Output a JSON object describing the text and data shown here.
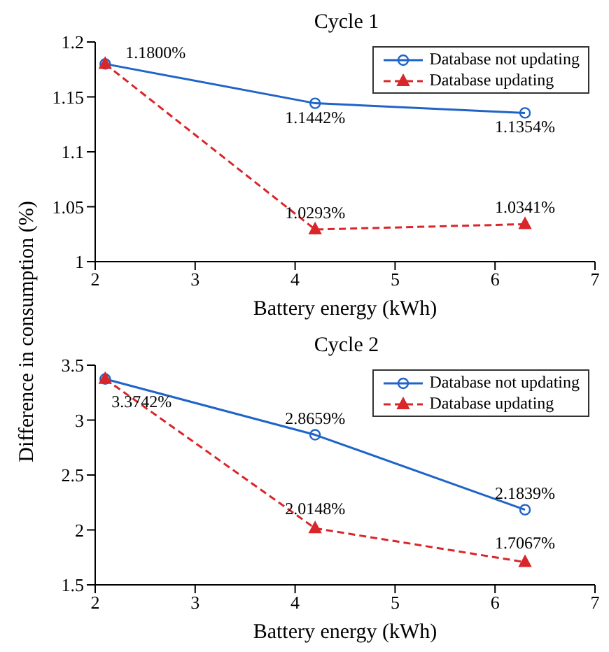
{
  "chart_data": [
    {
      "type": "line",
      "title": "Cycle 1",
      "xlabel": "Battery energy (kWh)",
      "ylabel": "Difference in consumption (%)",
      "xlim": [
        2,
        7
      ],
      "xticks": [
        2,
        3,
        4,
        5,
        6,
        7
      ],
      "ylim": [
        1,
        1.2
      ],
      "yticks": [
        1,
        1.05,
        1.1,
        1.15,
        1.2
      ],
      "legend": "top right",
      "grid": false,
      "series": [
        {
          "name": "Database not updating",
          "color": "#1f64c8",
          "x": [
            2.1,
            4.2,
            6.3
          ],
          "values": [
            1.18,
            1.1442,
            1.1354
          ],
          "marker": "circle",
          "line_style": "solid",
          "value_labels": [
            "1.1800%",
            "1.1442%",
            "1.1354%"
          ]
        },
        {
          "name": "Database updating",
          "color": "#d9262a",
          "x": [
            2.1,
            4.2,
            6.3
          ],
          "values": [
            1.18,
            1.0293,
            1.0341
          ],
          "marker": "triangle",
          "line_style": "dashed",
          "value_labels": [
            null,
            "1.0293%",
            "1.0341%"
          ]
        }
      ]
    },
    {
      "type": "line",
      "title": "Cycle 2",
      "xlabel": "Battery energy (kWh)",
      "xlim": [
        2,
        7
      ],
      "xticks": [
        2,
        3,
        4,
        5,
        6,
        7
      ],
      "ylim": [
        1.5,
        3.5
      ],
      "yticks": [
        1.5,
        2,
        2.5,
        3,
        3.5
      ],
      "legend": "top right",
      "grid": false,
      "series": [
        {
          "name": "Database not updating",
          "color": "#1f64c8",
          "x": [
            2.1,
            4.2,
            6.3
          ],
          "values": [
            3.3742,
            2.8659,
            2.1839
          ],
          "marker": "circle",
          "line_style": "solid",
          "value_labels": [
            null,
            "2.8659%",
            "2.1839%"
          ]
        },
        {
          "name": "Database updating",
          "color": "#d9262a",
          "x": [
            2.1,
            4.2,
            6.3
          ],
          "values": [
            3.3742,
            2.0148,
            1.7067
          ],
          "marker": "triangle",
          "line_style": "dashed",
          "value_labels": [
            "3.3742%",
            "2.0148%",
            "1.7067%"
          ]
        }
      ]
    }
  ]
}
